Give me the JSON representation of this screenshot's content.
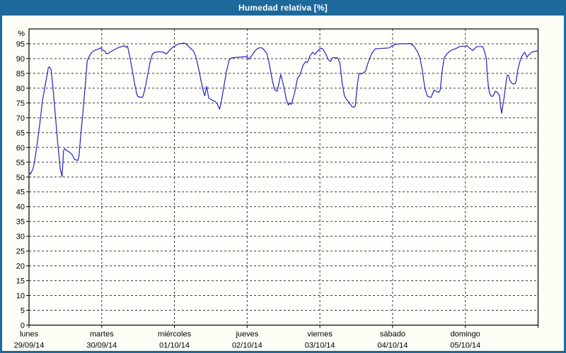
{
  "window": {
    "title": "Humedad relativa [%]"
  },
  "colors": {
    "titlebar_bg": "#1e699c",
    "window_border": "#1e699c",
    "content_bg": "#fcfdf5",
    "plot_bg": "#fefefa",
    "line": "#2222c4",
    "grid": "#3a3a3a",
    "frame": "#000000",
    "text": "#000000",
    "title_text": "#ffffff"
  },
  "chart_data": {
    "type": "line",
    "title": "Humedad relativa [%]",
    "ylabel": "%",
    "xlabel": "",
    "ylim": [
      0,
      100
    ],
    "y_tick_step": 5,
    "y_ticks": [
      0,
      5,
      10,
      15,
      20,
      25,
      30,
      35,
      40,
      45,
      50,
      55,
      60,
      65,
      70,
      75,
      80,
      85,
      90,
      95
    ],
    "y_axis_unit_label": "%",
    "x_range_hours": [
      0,
      168
    ],
    "x_days": [
      {
        "name": "lunes",
        "date": "29/09/14"
      },
      {
        "name": "martes",
        "date": "30/09/14"
      },
      {
        "name": "miércoles",
        "date": "01/10/14"
      },
      {
        "name": "jueves",
        "date": "02/10/14"
      },
      {
        "name": "viernes",
        "date": "03/10/14"
      },
      {
        "name": "sábado",
        "date": "04/10/14"
      },
      {
        "name": "domingo",
        "date": "05/10/14"
      }
    ],
    "grid": "dashed",
    "legend_position": "none",
    "series": [
      {
        "name": "Humedad relativa",
        "color": "#2222c4",
        "points_format": [
          "hour_from_monday_00",
          "percent"
        ],
        "points": [
          [
            0,
            51.7
          ],
          [
            0.5,
            51.0
          ],
          [
            1.4,
            53.0
          ],
          [
            2.1,
            57.0
          ],
          [
            2.9,
            62.8
          ],
          [
            3.7,
            69.0
          ],
          [
            4.4,
            75.5
          ],
          [
            5.2,
            80.2
          ],
          [
            6.0,
            84.6
          ],
          [
            6.4,
            87.0
          ],
          [
            6.8,
            87.2
          ],
          [
            7.3,
            86.2
          ],
          [
            7.9,
            80.2
          ],
          [
            8.7,
            70.7
          ],
          [
            9.5,
            61.2
          ],
          [
            10.3,
            52.9
          ],
          [
            10.9,
            50.1
          ],
          [
            11.4,
            58.8
          ],
          [
            11.8,
            59.6
          ],
          [
            12.6,
            58.8
          ],
          [
            13.4,
            58.4
          ],
          [
            14.2,
            57.6
          ],
          [
            15.0,
            56.0
          ],
          [
            16.1,
            55.6
          ],
          [
            16.5,
            57.2
          ],
          [
            16.9,
            62.0
          ],
          [
            17.3,
            66.7
          ],
          [
            17.7,
            70.7
          ],
          [
            18.1,
            75.5
          ],
          [
            18.5,
            80.2
          ],
          [
            18.9,
            85.0
          ],
          [
            19.2,
            89.0
          ],
          [
            19.6,
            90.2
          ],
          [
            20.4,
            91.7
          ],
          [
            21.2,
            92.5
          ],
          [
            22.0,
            92.9
          ],
          [
            22.7,
            93.1
          ],
          [
            23.7,
            93.6
          ],
          [
            24.3,
            92.9
          ],
          [
            25.1,
            92.5
          ],
          [
            25.5,
            91.6
          ],
          [
            26.2,
            91.8
          ],
          [
            27.3,
            92.5
          ],
          [
            28.5,
            93.2
          ],
          [
            29.7,
            93.8
          ],
          [
            30.6,
            94.0
          ],
          [
            31.5,
            94.4
          ],
          [
            32.0,
            93.8
          ],
          [
            32.5,
            94.2
          ],
          [
            33.2,
            91.0
          ],
          [
            34.0,
            86.6
          ],
          [
            34.8,
            81.8
          ],
          [
            35.6,
            77.9
          ],
          [
            36.0,
            77.1
          ],
          [
            37.5,
            76.9
          ],
          [
            38.3,
            79.8
          ],
          [
            39.1,
            84.2
          ],
          [
            39.9,
            88.6
          ],
          [
            40.7,
            91.4
          ],
          [
            41.4,
            92.1
          ],
          [
            43.0,
            92.3
          ],
          [
            44.5,
            92.1
          ],
          [
            45.3,
            91.5
          ],
          [
            46.5,
            92.9
          ],
          [
            47.3,
            93.7
          ],
          [
            47.9,
            94.1
          ],
          [
            49.2,
            94.9
          ],
          [
            50.8,
            95.2
          ],
          [
            51.6,
            95.1
          ],
          [
            52.3,
            94.5
          ],
          [
            53.5,
            93.3
          ],
          [
            54.3,
            92.5
          ],
          [
            55.1,
            90.5
          ],
          [
            55.8,
            87.4
          ],
          [
            56.6,
            83.4
          ],
          [
            57.4,
            79.4
          ],
          [
            58.0,
            77.4
          ],
          [
            58.6,
            80.6
          ],
          [
            59.3,
            76.7
          ],
          [
            60.5,
            75.9
          ],
          [
            61.3,
            75.6
          ],
          [
            62.1,
            74.7
          ],
          [
            62.9,
            72.9
          ],
          [
            63.6,
            76.3
          ],
          [
            64.4,
            81.0
          ],
          [
            65.2,
            85.8
          ],
          [
            66.0,
            89.4
          ],
          [
            66.7,
            90.2
          ],
          [
            68.2,
            90.4
          ],
          [
            69.9,
            90.5
          ],
          [
            71.8,
            90.7
          ],
          [
            72.6,
            89.8
          ],
          [
            73.8,
            91.4
          ],
          [
            74.5,
            92.5
          ],
          [
            75.3,
            93.3
          ],
          [
            76.2,
            93.7
          ],
          [
            77.1,
            93.5
          ],
          [
            78.5,
            91.7
          ],
          [
            79.2,
            88.6
          ],
          [
            80.4,
            82.2
          ],
          [
            81.1,
            79.4
          ],
          [
            81.9,
            79.0
          ],
          [
            83.1,
            84.6
          ],
          [
            83.9,
            81.4
          ],
          [
            85.0,
            75.9
          ],
          [
            85.6,
            74.3
          ],
          [
            86.2,
            75.0
          ],
          [
            86.6,
            74.5
          ],
          [
            87.8,
            79.0
          ],
          [
            88.6,
            83.4
          ],
          [
            89.3,
            84.2
          ],
          [
            90.5,
            87.8
          ],
          [
            91.3,
            89.0
          ],
          [
            91.8,
            88.6
          ],
          [
            92.8,
            91.0
          ],
          [
            93.6,
            92.1
          ],
          [
            94.4,
            91.4
          ],
          [
            95.1,
            92.3
          ],
          [
            96.0,
            93.3
          ],
          [
            96.7,
            93.5
          ],
          [
            97.9,
            91.7
          ],
          [
            98.7,
            89.8
          ],
          [
            99.5,
            89.0
          ],
          [
            100.2,
            90.3
          ],
          [
            101.8,
            90.3
          ],
          [
            102.6,
            88.6
          ],
          [
            103.3,
            82.2
          ],
          [
            104.1,
            77.4
          ],
          [
            104.7,
            76.3
          ],
          [
            105.7,
            75.1
          ],
          [
            106.5,
            73.9
          ],
          [
            107.2,
            73.5
          ],
          [
            107.7,
            74.0
          ],
          [
            108.3,
            80.6
          ],
          [
            108.9,
            85.0
          ],
          [
            109.6,
            84.8
          ],
          [
            110.3,
            85.2
          ],
          [
            111.1,
            85.8
          ],
          [
            111.9,
            88.6
          ],
          [
            113.1,
            91.7
          ],
          [
            114.3,
            93.3
          ],
          [
            115.7,
            93.4
          ],
          [
            117.3,
            93.5
          ],
          [
            118.9,
            93.6
          ],
          [
            119.7,
            94.2
          ],
          [
            120.8,
            94.8
          ],
          [
            122.4,
            95.0
          ],
          [
            124.1,
            95.0
          ],
          [
            125.9,
            95.1
          ],
          [
            127.1,
            94.1
          ],
          [
            128.3,
            92.1
          ],
          [
            129.0,
            90.2
          ],
          [
            129.8,
            86.2
          ],
          [
            130.2,
            83.0
          ],
          [
            130.7,
            79.8
          ],
          [
            131.4,
            77.4
          ],
          [
            132.0,
            77.1
          ],
          [
            132.7,
            76.9
          ],
          [
            133.7,
            79.4
          ],
          [
            134.3,
            79.0
          ],
          [
            135.2,
            78.6
          ],
          [
            135.7,
            79.4
          ],
          [
            136.4,
            86.2
          ],
          [
            137.0,
            90.2
          ],
          [
            138.0,
            91.7
          ],
          [
            139.5,
            92.9
          ],
          [
            140.7,
            93.3
          ],
          [
            142.3,
            94.1
          ],
          [
            143.7,
            94.2
          ],
          [
            144.6,
            94.3
          ],
          [
            146.2,
            92.9
          ],
          [
            146.5,
            92.7
          ],
          [
            147.7,
            94.0
          ],
          [
            149.7,
            94.1
          ],
          [
            150.3,
            92.5
          ],
          [
            150.9,
            90.2
          ],
          [
            151.2,
            85.4
          ],
          [
            151.6,
            80.6
          ],
          [
            152.0,
            78.3
          ],
          [
            152.4,
            77.4
          ],
          [
            153.0,
            77.2
          ],
          [
            154.0,
            79.0
          ],
          [
            154.7,
            78.4
          ],
          [
            155.3,
            77.5
          ],
          [
            155.6,
            74.0
          ],
          [
            156.0,
            71.5
          ],
          [
            156.4,
            74.3
          ],
          [
            156.8,
            76.7
          ],
          [
            157.2,
            80.0
          ],
          [
            157.6,
            83.4
          ],
          [
            157.9,
            84.5
          ],
          [
            158.3,
            84.2
          ],
          [
            158.7,
            82.6
          ],
          [
            159.2,
            81.8
          ],
          [
            159.8,
            81.4
          ],
          [
            160.4,
            81.5
          ],
          [
            160.8,
            82.6
          ],
          [
            161.3,
            86.2
          ],
          [
            161.9,
            88.6
          ],
          [
            162.5,
            90.5
          ],
          [
            163.0,
            91.4
          ],
          [
            163.6,
            92.1
          ],
          [
            164.3,
            90.5
          ],
          [
            165.1,
            91.4
          ],
          [
            165.9,
            92.1
          ],
          [
            166.7,
            92.4
          ],
          [
            167.4,
            92.5
          ],
          [
            167.9,
            92.7
          ]
        ]
      }
    ]
  }
}
